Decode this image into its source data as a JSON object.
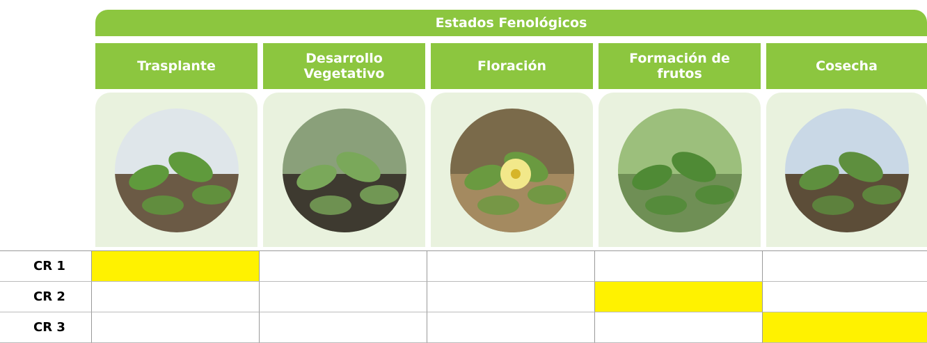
{
  "header": {
    "title": "Estados Fenológicos"
  },
  "stages": [
    "Trasplante",
    "Desarrollo Vegetativo",
    "Floración",
    "Formación de frutos",
    "Cosecha"
  ],
  "rows": [
    {
      "label": "CR 1",
      "highlighted_stage": 0
    },
    {
      "label": "CR 2",
      "highlighted_stage": 3
    },
    {
      "label": "CR 3",
      "highlighted_stage": 4
    }
  ]
}
